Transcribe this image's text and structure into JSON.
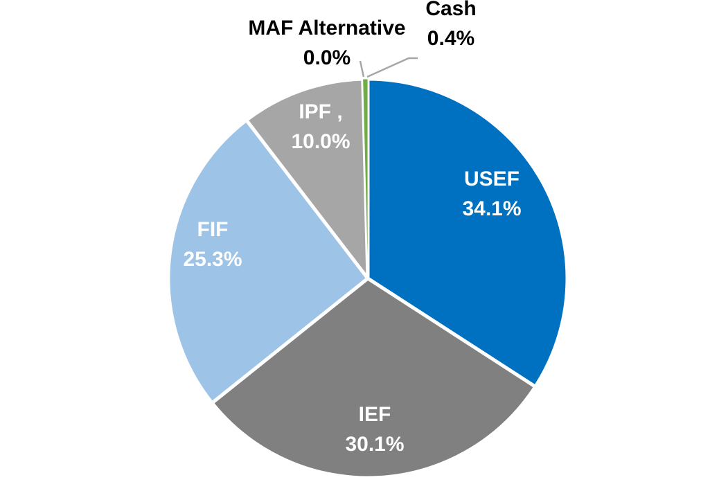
{
  "chart_data": {
    "type": "pie",
    "title": "",
    "slices": [
      {
        "label": "USEF",
        "value": 34.1,
        "display": "34.1%",
        "color": "#0070C0",
        "text_color": "#ffffff",
        "label_sep": ""
      },
      {
        "label": "IEF",
        "value": 30.1,
        "display": "30.1%",
        "color": "#808080",
        "text_color": "#ffffff",
        "label_sep": ""
      },
      {
        "label": "FIF",
        "value": 25.3,
        "display": "25.3%",
        "color": "#9DC3E6",
        "text_color": "#ffffff",
        "label_sep": ""
      },
      {
        "label": "IPF",
        "value": 10.0,
        "display": "10.0%",
        "color": "#A6A6A6",
        "text_color": "#ffffff",
        "label_sep": " ,"
      },
      {
        "label": "MAF Alternative",
        "value": 0.0,
        "display": "0.0%",
        "color": "#ED7D31",
        "text_color": "#000000",
        "label_sep": ""
      },
      {
        "label": "Cash",
        "value": 0.4,
        "display": "0.4%",
        "color": "#70AD47",
        "text_color": "#000000",
        "label_sep": ""
      }
    ],
    "start_angle_deg": 0,
    "direction": "clockwise"
  }
}
